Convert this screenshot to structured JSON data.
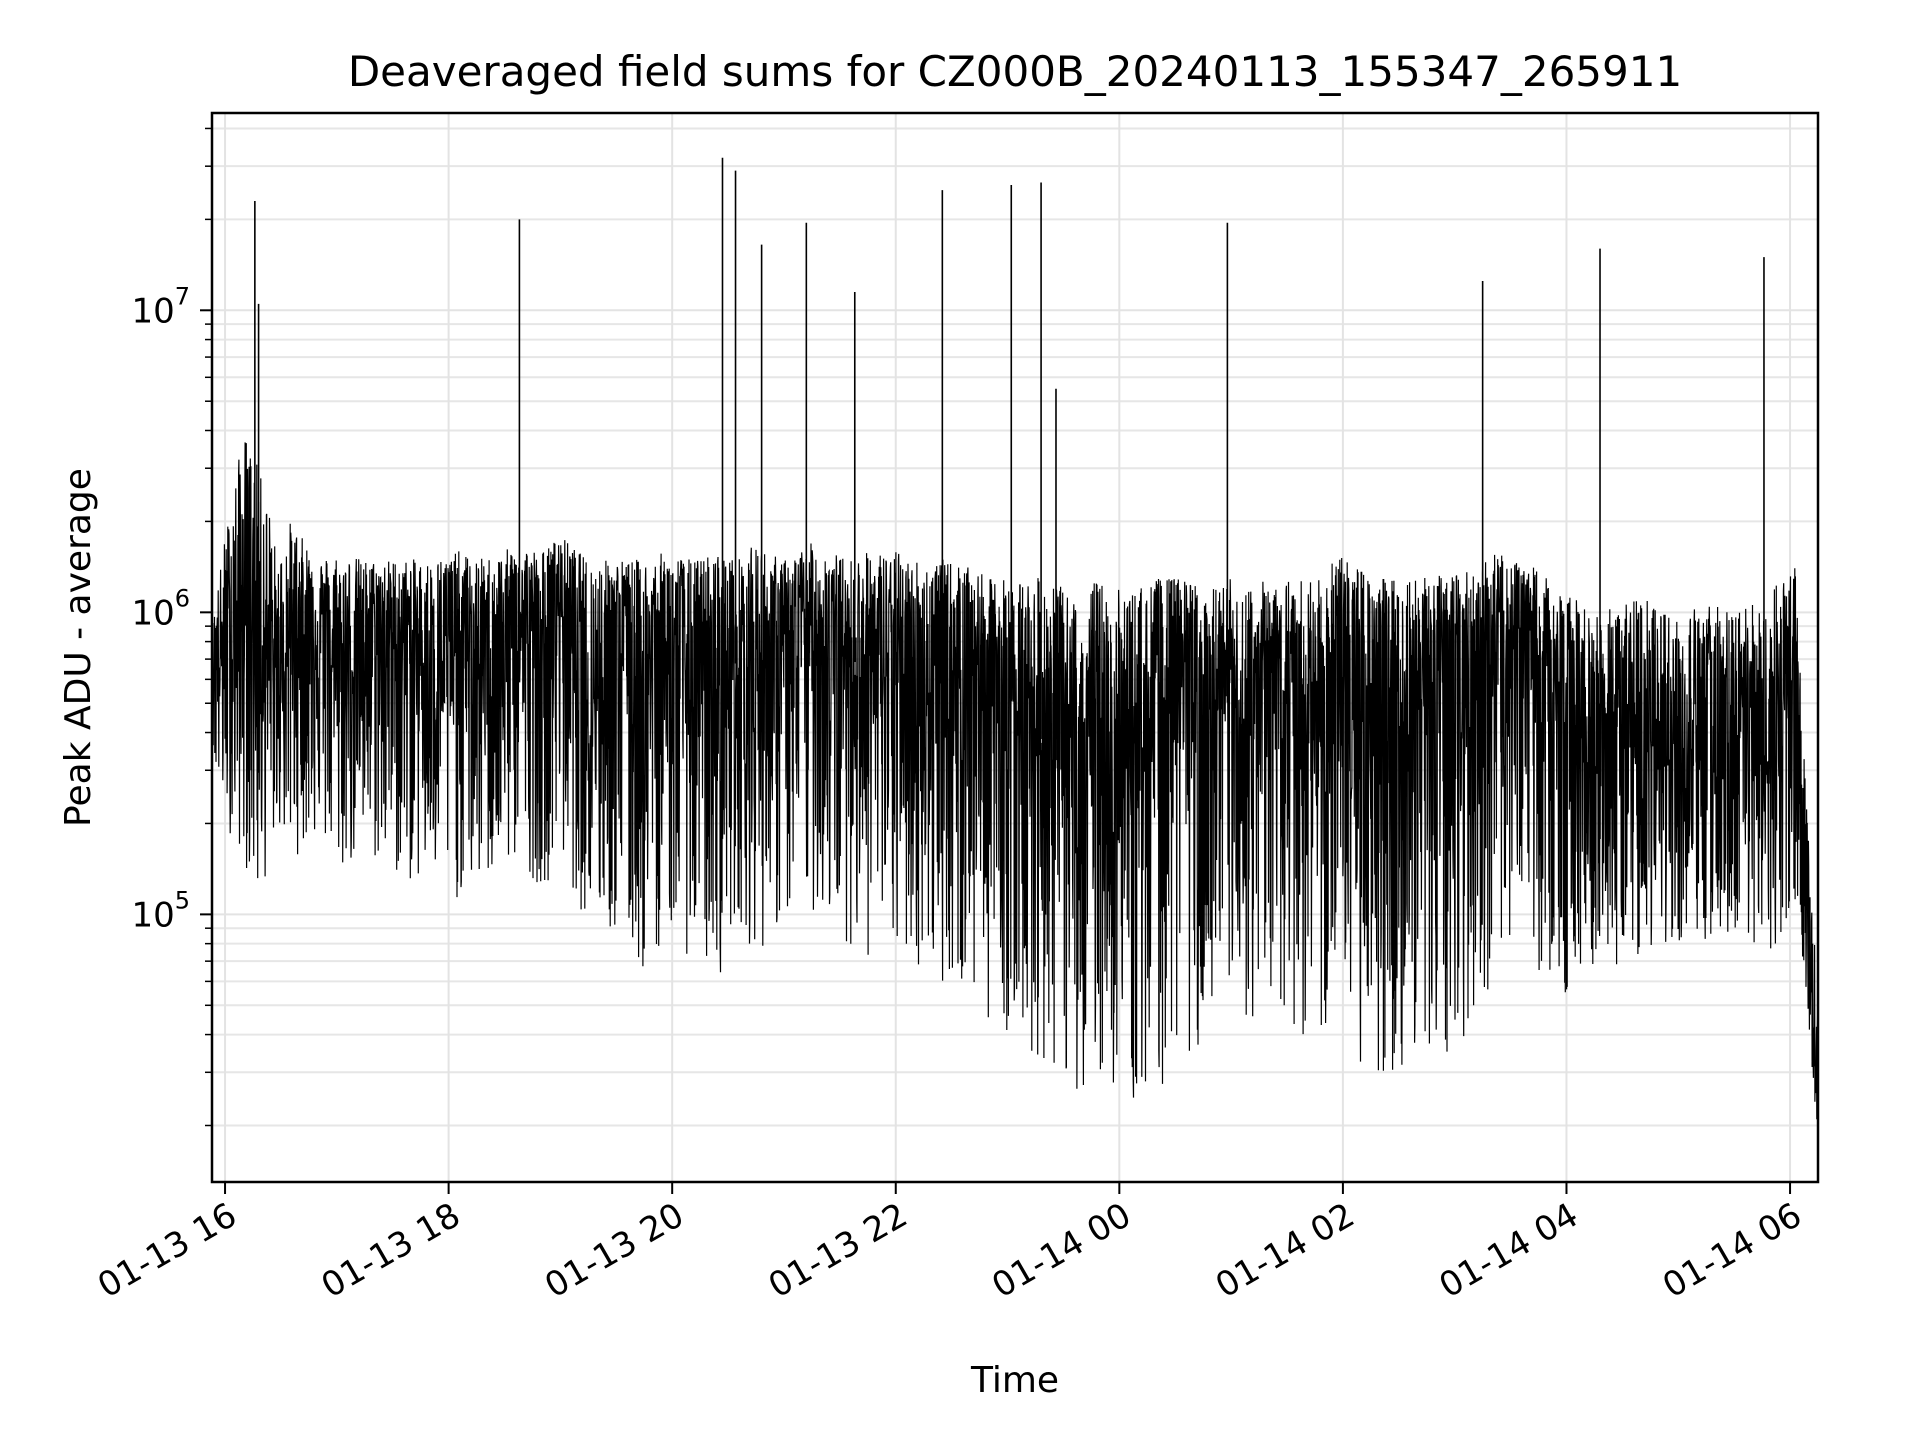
{
  "chart_data": {
    "type": "line",
    "title": "Deaveraged field sums for CZ000B_20240113_155347_265911",
    "xlabel": "Time",
    "ylabel": "Peak ADU - average",
    "yscale": "log",
    "xlim": [
      "2024-01-13 15:53",
      "2024-01-14 06:15"
    ],
    "ylim": [
      13000,
      45000000
    ],
    "grid": true,
    "line_color": "#000000",
    "x_ticks": [
      {
        "label": "01-13 16",
        "value": "2024-01-13 16:00"
      },
      {
        "label": "01-13 18",
        "value": "2024-01-13 18:00"
      },
      {
        "label": "01-13 20",
        "value": "2024-01-13 20:00"
      },
      {
        "label": "01-13 22",
        "value": "2024-01-13 22:00"
      },
      {
        "label": "01-14 00",
        "value": "2024-01-14 00:00"
      },
      {
        "label": "01-14 02",
        "value": "2024-01-14 02:00"
      },
      {
        "label": "01-14 04",
        "value": "2024-01-14 04:00"
      },
      {
        "label": "01-14 06",
        "value": "2024-01-14 06:00"
      }
    ],
    "y_ticks": [
      {
        "base": "10",
        "exp": "5",
        "value": 100000
      },
      {
        "base": "10",
        "exp": "6",
        "value": 1000000
      },
      {
        "base": "10",
        "exp": "7",
        "value": 10000000
      }
    ],
    "series": [
      {
        "x": [
          "2024-01-13 15:53",
          "2024-01-13 16:00",
          "2024-01-13 16:10",
          "2024-01-13 16:18",
          "2024-01-13 16:24",
          "2024-01-13 16:28",
          "2024-01-13 16:35",
          "2024-01-13 16:50",
          "2024-01-13 17:00",
          "2024-01-13 17:15",
          "2024-01-13 17:30",
          "2024-01-13 17:50",
          "2024-01-13 18:05",
          "2024-01-13 18:15",
          "2024-01-13 18:30",
          "2024-01-13 18:38",
          "2024-01-13 18:50",
          "2024-01-13 19:00",
          "2024-01-13 19:15",
          "2024-01-13 19:30",
          "2024-01-13 19:45",
          "2024-01-13 19:58",
          "2024-01-13 20:10",
          "2024-01-13 20:25",
          "2024-01-13 20:35",
          "2024-01-13 20:45",
          "2024-01-13 20:50",
          "2024-01-13 21:00",
          "2024-01-13 21:15",
          "2024-01-13 21:25",
          "2024-01-13 21:35",
          "2024-01-13 21:45",
          "2024-01-13 22:00",
          "2024-01-13 22:15",
          "2024-01-13 22:25",
          "2024-01-13 22:40",
          "2024-01-13 22:50",
          "2024-01-13 23:00",
          "2024-01-13 23:10",
          "2024-01-13 23:22",
          "2024-01-13 23:30",
          "2024-01-13 23:37",
          "2024-01-13 23:48",
          "2024-01-13 23:55",
          "2024-01-14 00:08",
          "2024-01-14 00:20",
          "2024-01-14 00:35",
          "2024-01-14 00:50",
          "2024-01-14 01:00",
          "2024-01-14 01:05",
          "2024-01-14 01:20",
          "2024-01-14 01:35",
          "2024-01-14 01:50",
          "2024-01-14 01:58",
          "2024-01-14 02:10",
          "2024-01-14 02:25",
          "2024-01-14 02:40",
          "2024-01-14 02:55",
          "2024-01-14 03:10",
          "2024-01-14 03:20",
          "2024-01-14 03:30",
          "2024-01-14 03:45",
          "2024-01-14 03:55",
          "2024-01-14 04:05",
          "2024-01-14 04:18",
          "2024-01-14 04:30",
          "2024-01-14 04:45",
          "2024-01-14 05:00",
          "2024-01-14 05:15",
          "2024-01-14 05:30",
          "2024-01-14 05:45",
          "2024-01-14 05:50",
          "2024-01-14 05:58",
          "2024-01-14 06:03",
          "2024-01-14 06:08",
          "2024-01-14 06:12",
          "2024-01-14 06:15"
        ],
        "y": [
          700000,
          650000,
          900000,
          1000000,
          600000,
          500000,
          800000,
          900000,
          600000,
          700000,
          800000,
          650000,
          750000,
          600000,
          700000,
          900000,
          650000,
          1100000,
          500000,
          800000,
          600000,
          650000,
          600000,
          500000,
          700000,
          600000,
          750000,
          650000,
          900000,
          750000,
          700000,
          650000,
          600000,
          500000,
          600000,
          700000,
          500000,
          550000,
          450000,
          350000,
          300000,
          200000,
          400000,
          250000,
          300000,
          500000,
          600000,
          350000,
          550000,
          300000,
          650000,
          500000,
          400000,
          600000,
          450000,
          400000,
          500000,
          450000,
          550000,
          700000,
          650000,
          600000,
          500000,
          350000,
          300000,
          350000,
          400000,
          300000,
          350000,
          250000,
          300000,
          350000,
          500000,
          600000,
          100000,
          50000,
          20000
        ],
        "upper": [
          900000,
          1800000,
          4000000,
          3000000,
          2200000,
          1500000,
          2000000,
          1500000,
          1600000,
          1500000,
          1500000,
          1500000,
          1600000,
          1500000,
          1600000,
          1700000,
          1600000,
          1800000,
          1500000,
          1500000,
          1500000,
          1600000,
          1500000,
          1600000,
          1500000,
          1700000,
          1600000,
          1500000,
          1700000,
          1600000,
          1500000,
          1600000,
          1600000,
          1500000,
          1500000,
          1400000,
          1300000,
          1300000,
          1300000,
          1300000,
          1200000,
          1100000,
          1300000,
          1200000,
          1200000,
          1300000,
          1300000,
          1200000,
          1300000,
          1200000,
          1300000,
          1300000,
          1300000,
          1600000,
          1400000,
          1300000,
          1400000,
          1300000,
          1400000,
          1600000,
          1500000,
          1400000,
          1200000,
          1100000,
          1000000,
          1100000,
          1100000,
          1000000,
          1100000,
          1000000,
          1100000,
          1200000,
          1300000,
          1500000,
          300000,
          100000,
          60000
        ],
        "lower": [
          300000,
          200000,
          150000,
          100000,
          150000,
          200000,
          150000,
          180000,
          130000,
          150000,
          130000,
          120000,
          110000,
          120000,
          130000,
          150000,
          120000,
          150000,
          90000,
          80000,
          60000,
          90000,
          70000,
          60000,
          100000,
          70000,
          80000,
          90000,
          100000,
          90000,
          80000,
          70000,
          70000,
          65000,
          60000,
          50000,
          45000,
          40000,
          35000,
          30000,
          28000,
          25000,
          30000,
          27000,
          22000,
          25000,
          35000,
          30000,
          35000,
          40000,
          50000,
          40000,
          35000,
          45000,
          30000,
          28000,
          35000,
          30000,
          45000,
          60000,
          70000,
          60000,
          50000,
          60000,
          70000,
          60000,
          75000,
          65000,
          70000,
          65000,
          60000,
          70000,
          80000,
          90000,
          60000,
          30000,
          18000
        ]
      }
    ],
    "spikes": [
      {
        "x": "2024-01-13 16:16",
        "y": 23000000
      },
      {
        "x": "2024-01-13 16:18",
        "y": 10500000
      },
      {
        "x": "2024-01-13 18:38",
        "y": 20000000
      },
      {
        "x": "2024-01-13 20:27",
        "y": 32000000
      },
      {
        "x": "2024-01-13 20:34",
        "y": 29000000
      },
      {
        "x": "2024-01-13 20:48",
        "y": 16500000
      },
      {
        "x": "2024-01-13 21:12",
        "y": 19500000
      },
      {
        "x": "2024-01-13 21:38",
        "y": 11500000
      },
      {
        "x": "2024-01-13 22:25",
        "y": 25000000
      },
      {
        "x": "2024-01-13 23:02",
        "y": 26000000
      },
      {
        "x": "2024-01-13 23:18",
        "y": 26500000
      },
      {
        "x": "2024-01-13 23:26",
        "y": 5500000
      },
      {
        "x": "2024-01-14 00:58",
        "y": 19500000
      },
      {
        "x": "2024-01-14 03:15",
        "y": 12500000
      },
      {
        "x": "2024-01-14 04:18",
        "y": 16000000
      },
      {
        "x": "2024-01-14 05:46",
        "y": 15000000
      }
    ]
  }
}
